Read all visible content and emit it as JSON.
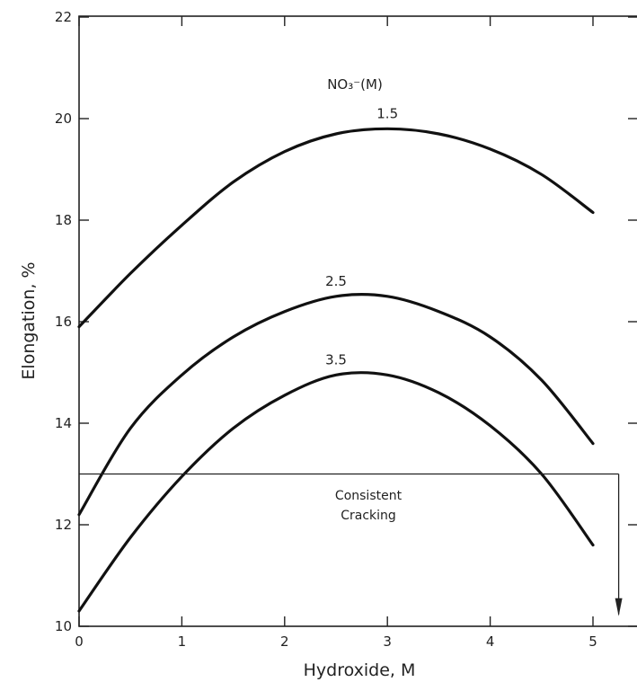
{
  "chart_data": {
    "type": "line",
    "xlabel": "Hydroxide, M",
    "ylabel": "Elongation, %",
    "xlim": [
      0,
      5.4
    ],
    "ylim": [
      10,
      22
    ],
    "x_ticks": [
      0,
      1,
      2,
      3,
      4,
      5
    ],
    "y_ticks": [
      10,
      12,
      14,
      16,
      18,
      20,
      22
    ],
    "legend_title": "NO₃⁻(M)",
    "series": [
      {
        "name": "1.5",
        "x": [
          0,
          0.5,
          1,
          1.5,
          2,
          2.5,
          3,
          3.5,
          4,
          4.5,
          5
        ],
        "y": [
          15.9,
          16.95,
          17.9,
          18.75,
          19.35,
          19.7,
          19.8,
          19.7,
          19.4,
          18.9,
          18.15
        ]
      },
      {
        "name": "2.5",
        "x": [
          0,
          0.5,
          1,
          1.5,
          2,
          2.5,
          3,
          3.5,
          4,
          4.5,
          5
        ],
        "y": [
          12.2,
          13.9,
          14.95,
          15.7,
          16.2,
          16.5,
          16.5,
          16.2,
          15.7,
          14.85,
          13.6
        ]
      },
      {
        "name": "3.5",
        "x": [
          0,
          0.5,
          1,
          1.5,
          2,
          2.5,
          3,
          3.5,
          4,
          4.5,
          5
        ],
        "y": [
          10.3,
          11.75,
          12.95,
          13.9,
          14.55,
          14.95,
          14.95,
          14.6,
          13.95,
          13.0,
          11.6
        ]
      }
    ],
    "threshold": {
      "y": 13,
      "x_end": 5.25,
      "arrow_to_y": 10.2,
      "label_lines": [
        "Consistent",
        "Cracking"
      ]
    },
    "grid": false,
    "legend_placement": "top-center"
  }
}
